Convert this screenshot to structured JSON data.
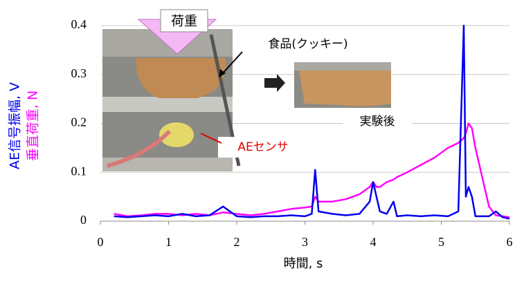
{
  "chart_data": {
    "type": "line",
    "x_label": "時間, s",
    "xlim": [
      0,
      6
    ],
    "xticks": [
      0,
      1,
      2,
      3,
      4,
      5,
      6
    ],
    "ylim": [
      0,
      0.4
    ],
    "yticks": [
      0,
      0.1,
      0.2,
      0.3,
      0.4
    ],
    "grid": true,
    "x": [
      0.2,
      0.4,
      0.6,
      0.8,
      1.0,
      1.2,
      1.4,
      1.6,
      1.8,
      2.0,
      2.2,
      2.4,
      2.6,
      2.8,
      3.0,
      3.1,
      3.15,
      3.2,
      3.4,
      3.6,
      3.8,
      3.95,
      4.0,
      4.05,
      4.1,
      4.2,
      4.3,
      4.35,
      4.5,
      4.7,
      4.9,
      5.1,
      5.25,
      5.33,
      5.36,
      5.4,
      5.45,
      5.5,
      5.6,
      5.7,
      5.8,
      5.9,
      6.0
    ],
    "series": [
      {
        "name": "垂直荷重, N",
        "color": "#ff00ff",
        "values": [
          0.015,
          0.01,
          0.012,
          0.015,
          0.015,
          0.012,
          0.015,
          0.012,
          0.018,
          0.015,
          0.012,
          0.015,
          0.02,
          0.025,
          0.028,
          0.03,
          0.05,
          0.04,
          0.04,
          0.045,
          0.055,
          0.07,
          0.08,
          0.07,
          0.07,
          0.08,
          0.085,
          0.09,
          0.1,
          0.115,
          0.13,
          0.15,
          0.16,
          0.17,
          0.18,
          0.2,
          0.19,
          0.15,
          0.09,
          0.03,
          0.012,
          0.01,
          0.008
        ]
      },
      {
        "name": "AE信号振幅, V",
        "color": "#0000ee",
        "values": [
          0.01,
          0.008,
          0.01,
          0.012,
          0.01,
          0.015,
          0.01,
          0.012,
          0.03,
          0.01,
          0.008,
          0.01,
          0.01,
          0.012,
          0.01,
          0.015,
          0.105,
          0.02,
          0.015,
          0.012,
          0.015,
          0.04,
          0.08,
          0.05,
          0.02,
          0.015,
          0.04,
          0.01,
          0.012,
          0.01,
          0.012,
          0.01,
          0.02,
          0.4,
          0.05,
          0.07,
          0.05,
          0.01,
          0.01,
          0.01,
          0.02,
          0.008,
          0.005
        ]
      }
    ],
    "annotations": [
      "荷重",
      "食品(クッキー)",
      "AEセンサ",
      "実験後"
    ]
  }
}
